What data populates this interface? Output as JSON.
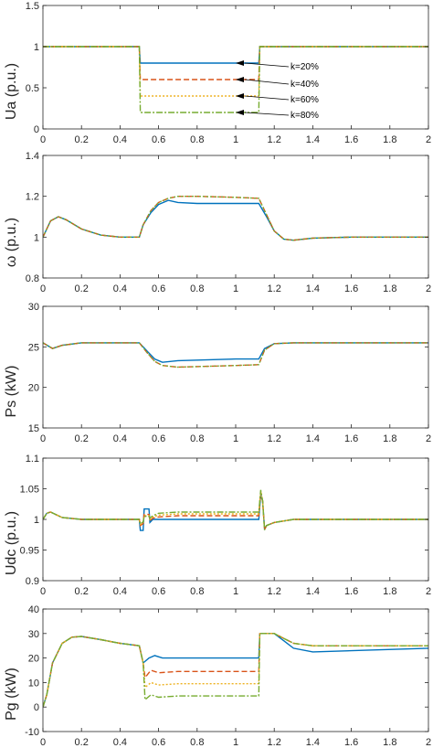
{
  "chart_data": [
    {
      "type": "line",
      "ylabel": "Ua (p.u.)",
      "xlim": [
        0,
        2
      ],
      "ylim": [
        0,
        1.5
      ],
      "xticks": [
        "0",
        "0.2",
        "0.4",
        "0.6",
        "0.8",
        "1",
        "1.2",
        "1.4",
        "1.6",
        "1.8",
        "2"
      ],
      "yticks": [
        "0",
        "0.5",
        "1",
        "1.5"
      ],
      "annotations": [
        "k=20%",
        "k=40%",
        "k=60%",
        "k=80%"
      ],
      "series": [
        {
          "color": "#0072BD",
          "x": [
            0,
            0.5,
            0.505,
            1.12,
            1.125,
            2
          ],
          "y": [
            1,
            1,
            0.8,
            0.8,
            1,
            1
          ]
        },
        {
          "color": "#D95319",
          "x": [
            0,
            0.5,
            0.505,
            1.12,
            1.125,
            2
          ],
          "y": [
            1,
            1,
            0.6,
            0.6,
            1,
            1
          ]
        },
        {
          "color": "#EDB120",
          "x": [
            0,
            0.5,
            0.505,
            1.12,
            1.125,
            2
          ],
          "y": [
            1,
            1,
            0.4,
            0.4,
            1,
            1
          ]
        },
        {
          "color": "#77AC30",
          "x": [
            0,
            0.5,
            0.505,
            1.12,
            1.125,
            2
          ],
          "y": [
            1,
            1,
            0.2,
            0.2,
            1,
            1
          ]
        }
      ]
    },
    {
      "type": "line",
      "ylabel": "ω (p.u.)",
      "xlim": [
        0,
        2
      ],
      "ylim": [
        0.8,
        1.4
      ],
      "xticks": [
        "0",
        "0.2",
        "0.4",
        "0.6",
        "0.8",
        "1",
        "1.2",
        "1.4",
        "1.6",
        "1.8",
        "2"
      ],
      "yticks": [
        "0.8",
        "1",
        "1.2",
        "1.4"
      ],
      "series": [
        {
          "color": "#0072BD",
          "x": [
            0,
            0.04,
            0.08,
            0.12,
            0.2,
            0.3,
            0.4,
            0.5,
            0.52,
            0.56,
            0.6,
            0.65,
            0.7,
            0.8,
            1.0,
            1.12,
            1.16,
            1.2,
            1.25,
            1.3,
            1.4,
            1.6,
            2
          ],
          "y": [
            1,
            1.08,
            1.1,
            1.085,
            1.04,
            1.01,
            1.0,
            1.0,
            1.06,
            1.12,
            1.16,
            1.18,
            1.17,
            1.165,
            1.165,
            1.165,
            1.1,
            1.03,
            0.99,
            0.985,
            0.995,
            1.0,
            1.0
          ]
        },
        {
          "color": "#D95319",
          "x": [
            0,
            0.04,
            0.08,
            0.12,
            0.2,
            0.3,
            0.4,
            0.5,
            0.52,
            0.56,
            0.6,
            0.65,
            0.7,
            0.8,
            1.0,
            1.12,
            1.16,
            1.2,
            1.25,
            1.3,
            1.4,
            1.6,
            2
          ],
          "y": [
            1,
            1.08,
            1.1,
            1.085,
            1.04,
            1.01,
            1.0,
            1.0,
            1.06,
            1.13,
            1.17,
            1.19,
            1.2,
            1.2,
            1.195,
            1.19,
            1.11,
            1.03,
            0.99,
            0.985,
            0.995,
            1.0,
            1.0
          ]
        },
        {
          "color": "#77AC30",
          "x": [
            0,
            0.04,
            0.08,
            0.12,
            0.2,
            0.3,
            0.4,
            0.5,
            0.52,
            0.56,
            0.6,
            0.65,
            0.7,
            0.8,
            1.0,
            1.12,
            1.16,
            1.2,
            1.25,
            1.3,
            1.4,
            1.6,
            2
          ],
          "y": [
            1,
            1.08,
            1.1,
            1.085,
            1.04,
            1.01,
            1.0,
            1.0,
            1.06,
            1.13,
            1.17,
            1.19,
            1.2,
            1.2,
            1.195,
            1.19,
            1.11,
            1.03,
            0.99,
            0.985,
            0.995,
            1.0,
            1.0
          ]
        }
      ]
    },
    {
      "type": "line",
      "ylabel": "Ps (kW)",
      "xlim": [
        0,
        2
      ],
      "ylim": [
        15,
        30
      ],
      "xticks": [
        "0",
        "0.2",
        "0.4",
        "0.6",
        "0.8",
        "1",
        "1.2",
        "1.4",
        "1.6",
        "1.8",
        "2"
      ],
      "yticks": [
        "15",
        "20",
        "25",
        "30"
      ],
      "series": [
        {
          "color": "#0072BD",
          "x": [
            0,
            0.05,
            0.1,
            0.2,
            0.3,
            0.5,
            0.54,
            0.58,
            0.62,
            0.7,
            1.0,
            1.12,
            1.15,
            1.2,
            1.3,
            2
          ],
          "y": [
            25.5,
            24.8,
            25.2,
            25.5,
            25.5,
            25.5,
            24.5,
            23.5,
            23.1,
            23.3,
            23.5,
            23.5,
            24.8,
            25.4,
            25.5,
            25.5
          ]
        },
        {
          "color": "#D95319",
          "x": [
            0,
            0.05,
            0.1,
            0.2,
            0.3,
            0.5,
            0.54,
            0.58,
            0.62,
            0.7,
            1.0,
            1.12,
            1.15,
            1.2,
            1.3,
            2
          ],
          "y": [
            25.5,
            24.8,
            25.2,
            25.5,
            25.5,
            25.5,
            24.3,
            23.2,
            22.7,
            22.5,
            22.7,
            22.8,
            24.6,
            25.4,
            25.5,
            25.5
          ]
        },
        {
          "color": "#77AC30",
          "x": [
            0,
            0.05,
            0.1,
            0.2,
            0.3,
            0.5,
            0.54,
            0.58,
            0.62,
            0.7,
            1.0,
            1.12,
            1.15,
            1.2,
            1.3,
            2
          ],
          "y": [
            25.5,
            24.8,
            25.2,
            25.5,
            25.5,
            25.5,
            24.3,
            23.2,
            22.7,
            22.5,
            22.7,
            22.8,
            24.6,
            25.4,
            25.5,
            25.5
          ]
        }
      ]
    },
    {
      "type": "line",
      "ylabel": "Udc (p.u.)",
      "xlim": [
        0,
        2
      ],
      "ylim": [
        0.9,
        1.1
      ],
      "xticks": [
        "0",
        "0.2",
        "0.4",
        "0.6",
        "0.8",
        "1",
        "1.2",
        "1.4",
        "1.6",
        "1.8",
        "2"
      ],
      "yticks": [
        "0.9",
        "0.95",
        "1",
        "1.05",
        "1.1"
      ],
      "series": [
        {
          "color": "#0072BD",
          "x": [
            0,
            0.02,
            0.04,
            0.1,
            0.2,
            0.5,
            0.505,
            0.52,
            0.525,
            0.55,
            0.555,
            0.57,
            0.6,
            1.0,
            1.12,
            1.13,
            1.14,
            1.15,
            1.16,
            1.2,
            1.3,
            2
          ],
          "y": [
            1,
            1.01,
            1.012,
            1.003,
            1.0,
            1.0,
            0.982,
            0.982,
            1.017,
            1.017,
            0.995,
            1.0,
            1.0,
            1.0,
            1.0,
            1.04,
            1.03,
            0.985,
            0.99,
            0.995,
            1.0,
            1.0
          ]
        },
        {
          "color": "#D95319",
          "x": [
            0,
            0.02,
            0.04,
            0.1,
            0.2,
            0.5,
            0.505,
            0.52,
            0.525,
            0.55,
            0.555,
            0.57,
            0.6,
            0.7,
            1.0,
            1.12,
            1.13,
            1.14,
            1.15,
            1.16,
            1.2,
            1.3,
            2
          ],
          "y": [
            1,
            1.01,
            1.012,
            1.003,
            1.0,
            1.0,
            0.99,
            0.993,
            1.008,
            1.008,
            0.998,
            1.002,
            1.004,
            1.006,
            1.006,
            1.006,
            1.045,
            1.03,
            0.983,
            0.99,
            0.995,
            1.0,
            1.0
          ]
        },
        {
          "color": "#EDB120",
          "x": [
            0,
            0.02,
            0.04,
            0.1,
            0.2,
            0.5,
            0.505,
            0.52,
            0.525,
            0.55,
            0.555,
            0.57,
            0.6,
            0.7,
            1.0,
            1.12,
            1.13,
            1.14,
            1.15,
            1.16,
            1.2,
            1.3,
            2
          ],
          "y": [
            1,
            1.01,
            1.012,
            1.003,
            1.0,
            1.0,
            0.992,
            0.995,
            1.006,
            1.006,
            1.0,
            1.004,
            1.007,
            1.009,
            1.009,
            1.009,
            1.046,
            1.03,
            0.983,
            0.99,
            0.995,
            1.0,
            1.0
          ]
        },
        {
          "color": "#77AC30",
          "x": [
            0,
            0.02,
            0.04,
            0.1,
            0.2,
            0.5,
            0.505,
            0.52,
            0.525,
            0.55,
            0.555,
            0.57,
            0.6,
            0.7,
            1.0,
            1.12,
            1.13,
            1.14,
            1.15,
            1.16,
            1.2,
            1.3,
            2
          ],
          "y": [
            1,
            1.01,
            1.012,
            1.003,
            1.0,
            1.0,
            0.993,
            0.996,
            1.005,
            1.005,
            1.002,
            1.006,
            1.01,
            1.012,
            1.012,
            1.012,
            1.048,
            1.03,
            0.983,
            0.99,
            0.995,
            1.0,
            1.0
          ]
        }
      ]
    },
    {
      "type": "line",
      "ylabel": "Pg (kW)",
      "xlim": [
        0,
        2
      ],
      "ylim": [
        -10,
        40
      ],
      "xticks": [
        "0",
        "0.2",
        "0.4",
        "0.6",
        "0.8",
        "1",
        "1.2",
        "1.4",
        "1.6",
        "1.8",
        "2"
      ],
      "yticks": [
        "-10",
        "0",
        "10",
        "20",
        "30",
        "40"
      ],
      "series": [
        {
          "color": "#0072BD",
          "x": [
            0,
            0.02,
            0.05,
            0.1,
            0.15,
            0.2,
            0.3,
            0.4,
            0.5,
            0.52,
            0.55,
            0.58,
            0.62,
            0.7,
            1.0,
            1.12,
            1.125,
            1.2,
            1.25,
            1.3,
            1.4,
            1.6,
            2
          ],
          "y": [
            0,
            5,
            18,
            26,
            28.5,
            28.8,
            27.5,
            26,
            25,
            18,
            20,
            21,
            20,
            20,
            20,
            20,
            30,
            30,
            27,
            24,
            22.5,
            23,
            24
          ]
        },
        {
          "color": "#D95319",
          "x": [
            0,
            0.02,
            0.05,
            0.1,
            0.15,
            0.2,
            0.3,
            0.4,
            0.5,
            0.52,
            0.53,
            0.56,
            0.6,
            0.7,
            1.0,
            1.12,
            1.125,
            1.2,
            1.25,
            1.3,
            1.4,
            1.6,
            2
          ],
          "y": [
            0,
            5,
            18,
            26,
            28.5,
            28.8,
            27.5,
            26,
            25,
            18,
            12,
            15,
            14,
            14.5,
            14.5,
            14.5,
            30,
            30,
            28,
            26,
            25,
            25,
            25
          ]
        },
        {
          "color": "#EDB120",
          "x": [
            0,
            0.02,
            0.05,
            0.1,
            0.15,
            0.2,
            0.3,
            0.4,
            0.5,
            0.52,
            0.53,
            0.56,
            0.6,
            0.7,
            1.0,
            1.12,
            1.125,
            1.2,
            1.25,
            1.3,
            1.4,
            1.6,
            2
          ],
          "y": [
            0,
            5,
            18,
            26,
            28.5,
            28.8,
            27.5,
            26,
            25,
            18,
            8,
            10,
            9,
            9.5,
            9.5,
            9.5,
            30,
            30,
            28,
            26,
            25,
            25,
            25
          ]
        },
        {
          "color": "#77AC30",
          "x": [
            0,
            0.02,
            0.05,
            0.1,
            0.15,
            0.2,
            0.3,
            0.4,
            0.5,
            0.52,
            0.53,
            0.56,
            0.6,
            0.7,
            1.0,
            1.12,
            1.125,
            1.2,
            1.25,
            1.3,
            1.4,
            1.6,
            2
          ],
          "y": [
            0,
            5,
            18,
            26,
            28.5,
            28.8,
            27.5,
            26,
            25,
            18,
            3,
            5,
            4,
            4.5,
            4.5,
            4.5,
            30,
            30,
            28,
            26,
            25,
            25,
            25
          ]
        }
      ]
    }
  ]
}
